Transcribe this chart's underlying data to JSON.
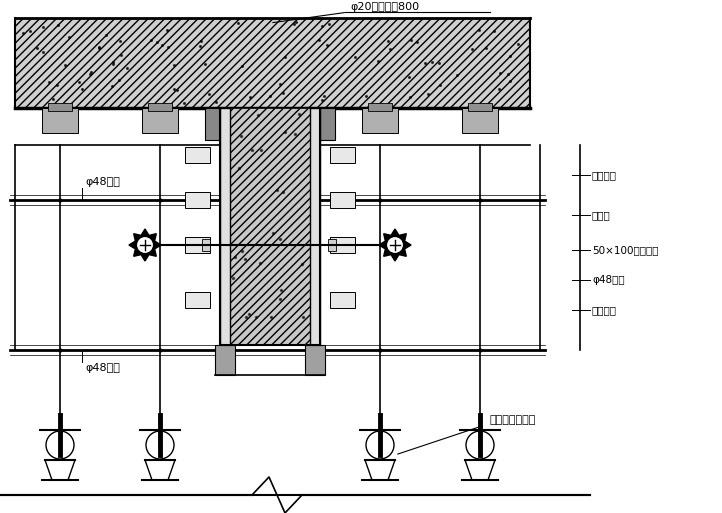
{
  "bg_color": "#ffffff",
  "line_color": "#000000",
  "labels": {
    "top_label": "φ20钉筋插棍800",
    "pipe_upper": "φ48钉管",
    "pipe_lower": "φ48钉管",
    "lbl1": "砼结构架",
    "lbl2": "九夹板",
    "lbl3": "50×100木方横档",
    "lbl4": "φ48钉管",
    "lbl5": "对拉螺栋",
    "lbl6": "可调节钉支顶架"
  },
  "figsize": [
    7.22,
    5.13
  ],
  "dpi": 100
}
